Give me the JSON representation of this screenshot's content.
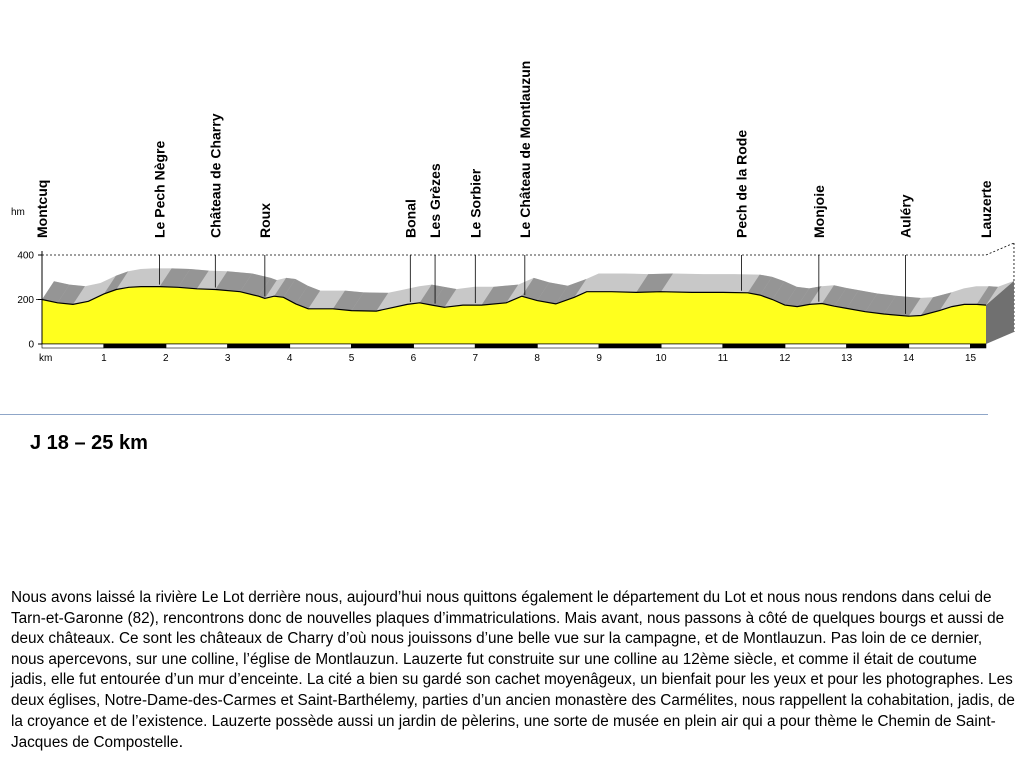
{
  "chart_data": {
    "type": "area",
    "xlabel": "km",
    "ylabel": "hm",
    "x_ticks": [
      1,
      2,
      3,
      4,
      5,
      6,
      7,
      8,
      9,
      10,
      11,
      12,
      13,
      14,
      15
    ],
    "y_ticks": [
      0,
      200,
      400
    ],
    "xlim": [
      0,
      15.25
    ],
    "ylim": [
      0,
      400
    ],
    "reference_line": 200,
    "colors": {
      "fill": "#ffff1e",
      "line": "#000000",
      "terrain_light": "#c8c8c8",
      "terrain_dark": "#8c8c8c",
      "side": "#707070"
    },
    "elevation_profile": [
      {
        "x": 0.0,
        "y": 200
      },
      {
        "x": 0.25,
        "y": 185
      },
      {
        "x": 0.5,
        "y": 178
      },
      {
        "x": 0.75,
        "y": 192
      },
      {
        "x": 1.0,
        "y": 225
      },
      {
        "x": 1.2,
        "y": 245
      },
      {
        "x": 1.4,
        "y": 255
      },
      {
        "x": 1.6,
        "y": 258
      },
      {
        "x": 1.9,
        "y": 258
      },
      {
        "x": 2.2,
        "y": 255
      },
      {
        "x": 2.5,
        "y": 248
      },
      {
        "x": 2.8,
        "y": 245
      },
      {
        "x": 3.2,
        "y": 235
      },
      {
        "x": 3.5,
        "y": 215
      },
      {
        "x": 3.6,
        "y": 205
      },
      {
        "x": 3.75,
        "y": 215
      },
      {
        "x": 3.9,
        "y": 210
      },
      {
        "x": 4.1,
        "y": 180
      },
      {
        "x": 4.3,
        "y": 158
      },
      {
        "x": 4.7,
        "y": 158
      },
      {
        "x": 5.0,
        "y": 150
      },
      {
        "x": 5.4,
        "y": 148
      },
      {
        "x": 5.6,
        "y": 160
      },
      {
        "x": 5.9,
        "y": 178
      },
      {
        "x": 6.1,
        "y": 185
      },
      {
        "x": 6.3,
        "y": 175
      },
      {
        "x": 6.5,
        "y": 165
      },
      {
        "x": 6.8,
        "y": 175
      },
      {
        "x": 7.1,
        "y": 175
      },
      {
        "x": 7.5,
        "y": 185
      },
      {
        "x": 7.75,
        "y": 215
      },
      {
        "x": 8.0,
        "y": 195
      },
      {
        "x": 8.3,
        "y": 180
      },
      {
        "x": 8.6,
        "y": 210
      },
      {
        "x": 8.8,
        "y": 235
      },
      {
        "x": 9.2,
        "y": 235
      },
      {
        "x": 9.6,
        "y": 232
      },
      {
        "x": 10.0,
        "y": 235
      },
      {
        "x": 10.5,
        "y": 232
      },
      {
        "x": 11.0,
        "y": 232
      },
      {
        "x": 11.4,
        "y": 230
      },
      {
        "x": 11.6,
        "y": 220
      },
      {
        "x": 11.8,
        "y": 200
      },
      {
        "x": 12.0,
        "y": 175
      },
      {
        "x": 12.2,
        "y": 168
      },
      {
        "x": 12.4,
        "y": 178
      },
      {
        "x": 12.6,
        "y": 182
      },
      {
        "x": 12.8,
        "y": 170
      },
      {
        "x": 13.0,
        "y": 160
      },
      {
        "x": 13.3,
        "y": 145
      },
      {
        "x": 13.6,
        "y": 135
      },
      {
        "x": 14.0,
        "y": 125
      },
      {
        "x": 14.2,
        "y": 128
      },
      {
        "x": 14.5,
        "y": 150
      },
      {
        "x": 14.7,
        "y": 168
      },
      {
        "x": 14.9,
        "y": 178
      },
      {
        "x": 15.1,
        "y": 178
      },
      {
        "x": 15.25,
        "y": 175
      }
    ],
    "waypoints": [
      {
        "name": "Montcuq",
        "km": 0.0,
        "tall": false
      },
      {
        "name": "Le Pech Nègre",
        "km": 1.9,
        "tall": true
      },
      {
        "name": "Château de Charry",
        "km": 2.8,
        "tall": true
      },
      {
        "name": "Roux",
        "km": 3.6,
        "tall": true
      },
      {
        "name": "Bonal",
        "km": 5.95,
        "tall": true
      },
      {
        "name": "Les Grèzes",
        "km": 6.35,
        "tall": true
      },
      {
        "name": "Le Sorbier",
        "km": 7.0,
        "tall": true
      },
      {
        "name": "Le Château de Montlauzun",
        "km": 7.8,
        "tall": true
      },
      {
        "name": "Pech de la Rode",
        "km": 11.3,
        "tall": true
      },
      {
        "name": "Monjoie",
        "km": 12.55,
        "tall": true
      },
      {
        "name": "Auléry",
        "km": 13.95,
        "tall": true
      },
      {
        "name": "Lauzerte",
        "km": 15.25,
        "tall": false
      }
    ]
  },
  "stage": {
    "title": "J 18 – 25 km"
  },
  "description": {
    "text": "Nous avons laissé la rivière Le Lot derrière nous, aujourd’hui nous quittons également le département du Lot et nous nous rendons dans celui de Tarn-et-Garonne (82), rencontrons donc de nouvelles plaques d’immatriculations. Mais avant, nous passons à côté de quelques bourgs et aussi de deux châteaux. Ce sont les châteaux de Charry d’où nous jouissons d’une belle vue sur la campagne, et de Montlauzun. Pas loin de ce dernier, nous apercevons, sur une colline, l’église de Montlauzun. Lauzerte fut construite sur une colline au 12ème siècle, et comme il était de coutume jadis, elle fut entourée d’un mur d’enceinte. La cité a bien su gardé son cachet moyenâgeux, un bienfait pour les yeux et pour les photographes. Les deux églises, Notre-Dame-des-Carmes et Saint-Barthélemy, parties d’un ancien monastère des Carmélites, nous rappellent la cohabitation, jadis, de la croyance et de l’existence. Lauzerte possède aussi un jardin de pèlerins, une sorte de musée en plein air qui a pour thème le Chemin de Saint-Jacques de Compostelle",
    "end": "."
  }
}
